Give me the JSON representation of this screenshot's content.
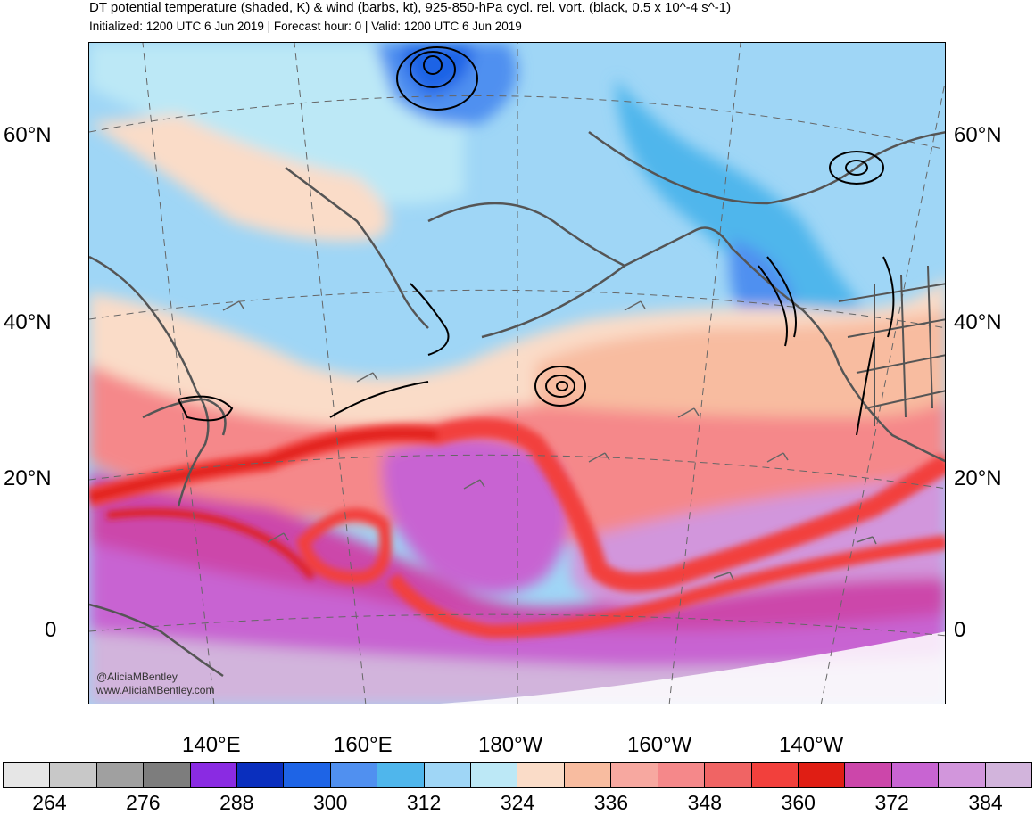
{
  "header": {
    "title": "DT potential temperature (shaded, K) & wind (barbs, kt), 925-850-hPa cycl. rel. vort. (black, 0.5 x 10^-4 s^-1)",
    "subtitle": "Initialized: 1200 UTC 6 Jun 2019 | Forecast hour: 0 | Valid: 1200 UTC 6 Jun 2019"
  },
  "map": {
    "lat_labels": [
      "60°N",
      "40°N",
      "20°N",
      "0"
    ],
    "lon_labels": [
      "140°E",
      "160°E",
      "180°W",
      "160°W",
      "140°W"
    ],
    "credit": [
      "@AliciaMBentley",
      "www.AliciaMBentley.com"
    ]
  },
  "colorbar": {
    "colors": [
      "#e6e6e6",
      "#c8c8c8",
      "#a0a0a0",
      "#7d7d7d",
      "#8a2be2",
      "#0a2fbe",
      "#1e64e6",
      "#5090f0",
      "#4fb6ec",
      "#9fd6f6",
      "#bce8f6",
      "#fadcc8",
      "#f8bca0",
      "#f7a8a0",
      "#f5888a",
      "#f06464",
      "#f2403c",
      "#e01e14",
      "#cc46aa",
      "#c864d2",
      "#d296dc",
      "#d2b4dc"
    ],
    "tick_labels": [
      "264",
      "276",
      "288",
      "300",
      "312",
      "324",
      "336",
      "348",
      "360",
      "372",
      "384"
    ]
  }
}
